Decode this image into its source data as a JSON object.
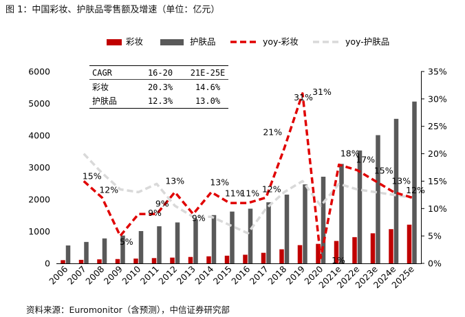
{
  "figure_title": "图 1：中国彩妆、护肤品零售额及增速（单位：亿元）",
  "source": "资料来源：Euromonitor（含预测），中信证券研究部",
  "colors": {
    "cosmetics": "#c00000",
    "skincare": "#595959",
    "yoy_cosmetics": "#e00000",
    "yoy_skincare": "#d9d9d9"
  },
  "cagr_table": {
    "headers": [
      "CAGR",
      "16-20",
      "21E-25E"
    ],
    "rows": [
      [
        "彩妆",
        "20.3%",
        "14.6%"
      ],
      [
        "护肤品",
        "12.3%",
        "13.0%"
      ]
    ]
  },
  "chart_data": {
    "type": "bar+line",
    "categories": [
      "2006",
      "2007",
      "2008",
      "2009",
      "2010",
      "2011",
      "2012",
      "2013",
      "2014",
      "2015",
      "2016",
      "2017",
      "2018",
      "2019",
      "2020",
      "2021e",
      "2022e",
      "2023e",
      "2024e",
      "2025e"
    ],
    "series": [
      {
        "name": "彩妆",
        "type": "bar",
        "axis": "left",
        "values": [
          100,
          110,
          125,
          135,
          150,
          165,
          180,
          200,
          220,
          240,
          270,
          330,
          440,
          570,
          610,
          700,
          820,
          940,
          1070,
          1210
        ]
      },
      {
        "name": "护肤品",
        "type": "bar",
        "axis": "left",
        "values": [
          560,
          670,
          780,
          870,
          1010,
          1160,
          1280,
          1380,
          1510,
          1620,
          1710,
          1910,
          2150,
          2470,
          2710,
          3110,
          3530,
          4010,
          4520,
          5060
        ]
      },
      {
        "name": "yoy-彩妆",
        "type": "line",
        "style": "dashed",
        "axis": "right",
        "values": [
          null,
          15,
          12,
          5,
          9,
          9,
          13,
          9,
          13,
          11,
          11,
          12,
          21,
          31,
          1,
          18,
          17,
          15,
          13,
          12
        ],
        "labels": [
          "",
          "15%",
          "12%",
          "5%",
          "9%",
          "9%",
          "13%",
          "9%",
          "13%",
          "11%",
          "11%",
          "12%",
          "21%",
          "31%",
          "1%",
          "18%",
          "17%",
          "15%",
          "13%",
          "12%"
        ]
      },
      {
        "name": "yoy-护肤品",
        "type": "line",
        "style": "dashed",
        "axis": "right",
        "values": [
          null,
          20,
          16.5,
          13.5,
          13,
          14.5,
          10.5,
          8.5,
          8.5,
          7,
          5.5,
          10,
          13,
          15,
          10.5,
          14.5,
          13.5,
          13,
          12.5,
          12
        ]
      }
    ],
    "ylim_left": [
      0,
      6000
    ],
    "yticks_left": [
      "0",
      "1000",
      "2000",
      "3000",
      "4000",
      "5000",
      "6000"
    ],
    "ylim_right": [
      0,
      35
    ],
    "yticks_right": [
      "0%",
      "5%",
      "10%",
      "15%",
      "20%",
      "25%",
      "30%",
      "35%"
    ],
    "legend_position": "top"
  }
}
